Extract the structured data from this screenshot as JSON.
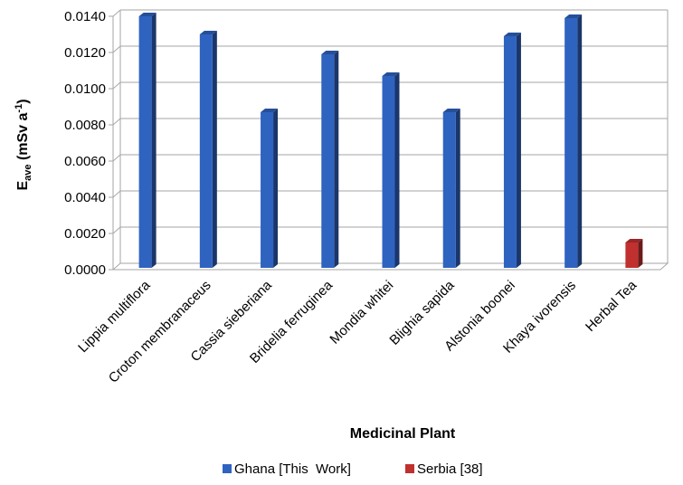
{
  "chart_data": {
    "type": "bar",
    "categories": [
      "Lippia multiflora",
      "Croton membranaceus",
      "Cassia sieberiana",
      "Bridelia ferruginea",
      "Mondia whitei",
      "Blighia sapida",
      "Alstonia boonei",
      "Khaya ivorensis",
      "Herbal Tea"
    ],
    "series": [
      {
        "name": "Ghana [This  Work]",
        "color": "#2f63c0",
        "values": [
          0.014,
          0.013,
          0.0087,
          0.0119,
          0.0107,
          0.0087,
          0.0129,
          0.0139,
          null
        ]
      },
      {
        "name": "Serbia [38]",
        "color": "#c0302f",
        "values": [
          null,
          null,
          null,
          null,
          null,
          null,
          null,
          null,
          0.0015
        ]
      }
    ],
    "ylim": [
      0,
      0.014
    ],
    "yticks": [
      "0.0000",
      "0.0020",
      "0.0040",
      "0.0060",
      "0.0080",
      "0.0100",
      "0.0120",
      "0.0140"
    ],
    "xlabel": "Medicinal Plant",
    "ylabel": {
      "main": "E",
      "subscript": "ave",
      "units": " (mSv a",
      "superscript": "-1",
      "close": ")"
    },
    "grid": true,
    "legend_position": "bottom"
  }
}
